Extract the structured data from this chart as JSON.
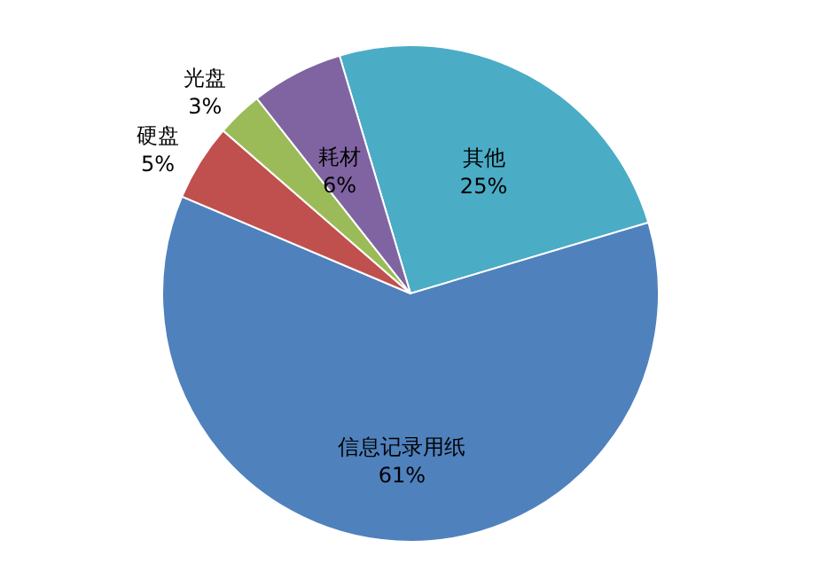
{
  "chart_data": {
    "type": "pie",
    "categories": [
      "其他",
      "信息记录用纸",
      "硬盘",
      "光盘",
      "耗材"
    ],
    "values": [
      25,
      61,
      5,
      3,
      6
    ],
    "value_labels": [
      "25%",
      "61%",
      "5%",
      "3%",
      "6%"
    ],
    "colors": [
      "#4bacc6",
      "#4f81bd",
      "#c0504d",
      "#9bbb59",
      "#8064a2"
    ]
  }
}
